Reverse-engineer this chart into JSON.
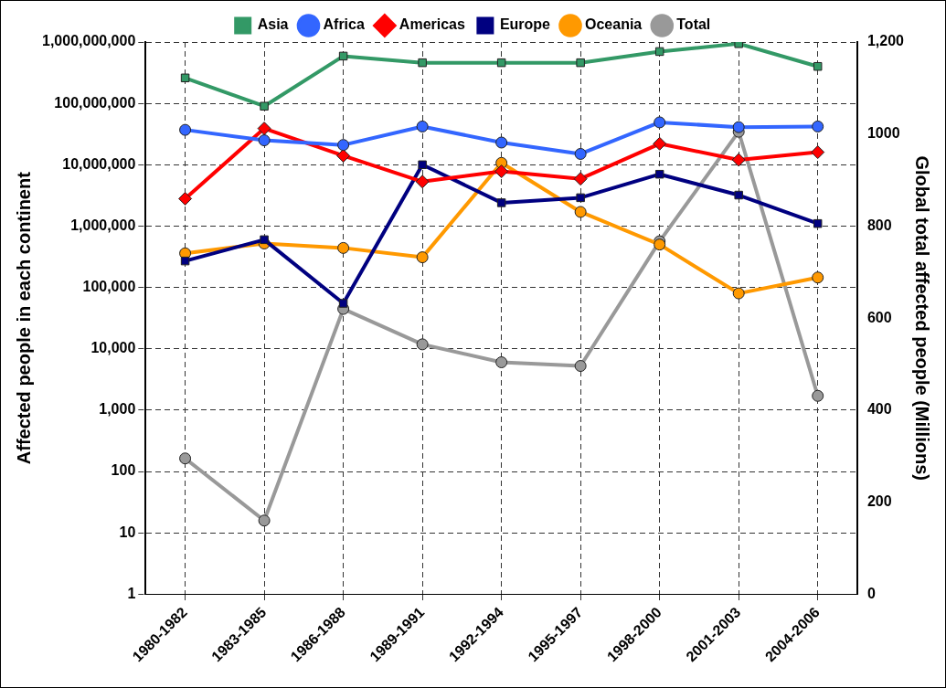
{
  "chart_data": {
    "type": "line",
    "ylabel": "Affected people in each continent",
    "y2label": "Global total affected people (Millions)",
    "categories": [
      "1980-1982",
      "1983-1985",
      "1986-1988",
      "1989-1991",
      "1992-1994",
      "1995-1997",
      "1998-2000",
      "2001-2003",
      "2004-2006"
    ],
    "log": "y",
    "grid": true,
    "legend": "top",
    "line_style": "solid",
    "ylim": [
      1,
      1000000000
    ],
    "yticks": [
      1,
      10,
      100,
      {
        "value": 1000,
        "label": "1,000"
      },
      {
        "value": 10000,
        "label": "10,000"
      },
      {
        "value": 100000,
        "label": "100,000"
      },
      {
        "value": 1000000,
        "label": "1,000,000"
      },
      {
        "value": 10000000,
        "label": "10,000,000"
      },
      {
        "value": 100000000,
        "label": "100,000,000"
      },
      {
        "value": 1000000000,
        "label": "1,000,000,000"
      }
    ],
    "y2lim": [
      0,
      1200
    ],
    "y2ticks": [
      0,
      200,
      400,
      600,
      800,
      1000,
      {
        "value": 1200,
        "label": "1,200"
      }
    ],
    "series": [
      {
        "name": "Asia",
        "color": "#339966",
        "marker": "square",
        "values": [
          260000000,
          90000000,
          590000000,
          460000000,
          460000000,
          460000000,
          700000000,
          940000000,
          400000000
        ]
      },
      {
        "name": "Africa",
        "color": "#3366ff",
        "marker": "circle",
        "values": [
          37000000,
          25000000,
          21000000,
          42000000,
          23000000,
          15000000,
          49000000,
          41000000,
          42000000
        ]
      },
      {
        "name": "Americas",
        "color": "#ff0000",
        "marker": "diamond",
        "values": [
          2800000,
          39000000,
          14000000,
          5300000,
          7800000,
          5900000,
          22000000,
          12000000,
          16000000
        ]
      },
      {
        "name": "Europe",
        "color": "#000080",
        "marker": "square",
        "values": [
          270000,
          600000,
          55000,
          10000000,
          2400000,
          2900000,
          7000000,
          3200000,
          1100000
        ]
      },
      {
        "name": "Oceania",
        "color": "#ff9900",
        "marker": "circle",
        "values": [
          360000,
          520000,
          440000,
          310000,
          10700000,
          1700000,
          500000,
          80000,
          145000
        ]
      },
      {
        "name": "Total",
        "color": "#999999",
        "marker": "circle",
        "axis": "y2",
        "values": [
          295,
          160,
          620,
          543,
          504,
          496,
          767,
          1005,
          431
        ]
      }
    ]
  }
}
